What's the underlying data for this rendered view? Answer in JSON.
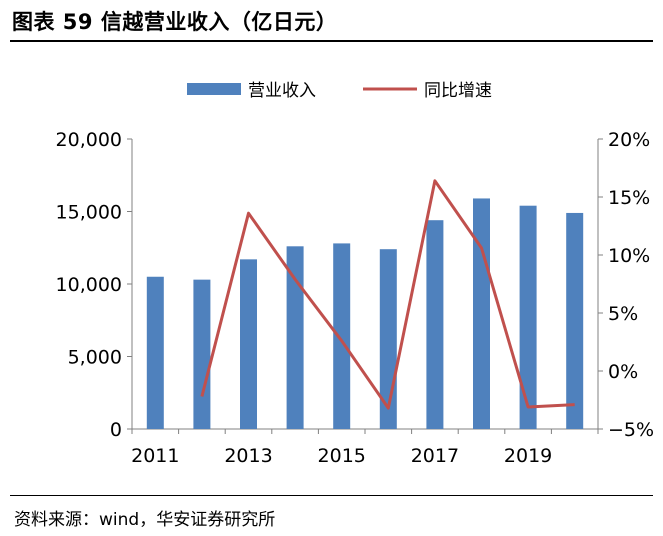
{
  "title": "图表 59 信越营业收入（亿日元）",
  "source": "资料来源：wind，华安证券研究所",
  "colors": {
    "bar": "#4f81bd",
    "line": "#c0504d",
    "axis": "#808080"
  },
  "chart_data": {
    "type": "bar",
    "title": "",
    "xlabel": "",
    "ylabel": "",
    "categories": [
      "2011",
      "2012",
      "2013",
      "2014",
      "2015",
      "2016",
      "2017",
      "2018",
      "2019",
      "2020"
    ],
    "x_tick_labels": [
      "2011",
      "2013",
      "2015",
      "2017",
      "2019"
    ],
    "series": [
      {
        "name": "营业收入",
        "type": "bar",
        "axis": "left",
        "values": [
          10500,
          10300,
          11700,
          12600,
          12800,
          12400,
          14400,
          15900,
          15400,
          14900
        ]
      },
      {
        "name": "同比增速",
        "type": "line",
        "axis": "right",
        "values": [
          null,
          -2.2,
          13.6,
          7.9,
          2.6,
          -3.2,
          16.4,
          10.6,
          -3.1,
          -2.9
        ]
      }
    ],
    "ylim": [
      0,
      20000
    ],
    "y_ticks": [
      "0",
      "5,000",
      "10,000",
      "15,000",
      "20,000"
    ],
    "y2lim": [
      -5,
      20
    ],
    "y2_ticks": [
      "−5%",
      "0%",
      "5%",
      "10%",
      "15%",
      "20%"
    ],
    "legend": "top",
    "grid": false
  }
}
